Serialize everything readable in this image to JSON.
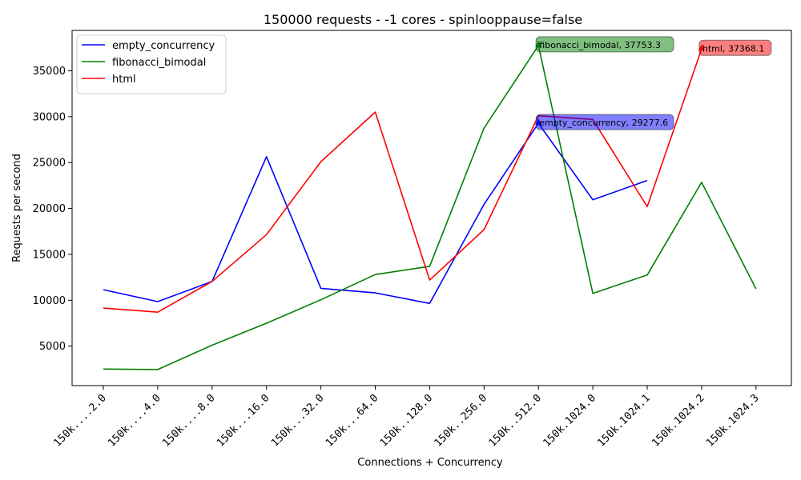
{
  "chart_data": {
    "type": "line",
    "title": "150000 requests - -1 cores - spinlooppause=false",
    "xlabel": "Connections + Concurrency",
    "ylabel": "Requests per second",
    "categories": [
      "150k....2.0",
      "150k....4.0",
      "150k....8.0",
      "150k...16.0",
      "150k...32.0",
      "150k...64.0",
      "150k..128.0",
      "150k..256.0",
      "150k..512.0",
      "150k.1024.0",
      "150k.1024.1",
      "150k.1024.2",
      "150k.1024.3"
    ],
    "yticks": [
      5000,
      10000,
      15000,
      20000,
      25000,
      30000,
      35000
    ],
    "ylim": [
      700,
      39400
    ],
    "legend_position": "top-left",
    "series": [
      {
        "name": "empty_concurrency",
        "color": "#0000ff",
        "values": [
          11150,
          9850,
          12050,
          25650,
          11300,
          10800,
          9650,
          20450,
          29277.6,
          20950,
          23050,
          null,
          null
        ]
      },
      {
        "name": "fibonacci_bimodal",
        "color": "#008000",
        "values": [
          2500,
          2450,
          5100,
          7500,
          10050,
          12800,
          13700,
          28750,
          37753.3,
          10750,
          12750,
          22850,
          11250
        ]
      },
      {
        "name": "html",
        "color": "#ff0000",
        "values": [
          9150,
          8700,
          12050,
          17150,
          25100,
          30500,
          12200,
          17700,
          30100,
          29700,
          20200,
          37368.1,
          null
        ]
      }
    ],
    "annotations": [
      {
        "series": "fibonacci_bimodal",
        "text": "fibonacci_bimodal, 37753.3",
        "x_index": 8,
        "value": 37753.3,
        "bg": "#008000"
      },
      {
        "series": "empty_concurrency",
        "text": "empty_concurrency, 29277.6",
        "x_index": 8,
        "value": 29277.6,
        "bg": "#0000ff"
      },
      {
        "series": "html",
        "text": "html, 37368.1",
        "x_index": 11,
        "value": 37368.1,
        "bg": "#ff0000"
      }
    ]
  }
}
